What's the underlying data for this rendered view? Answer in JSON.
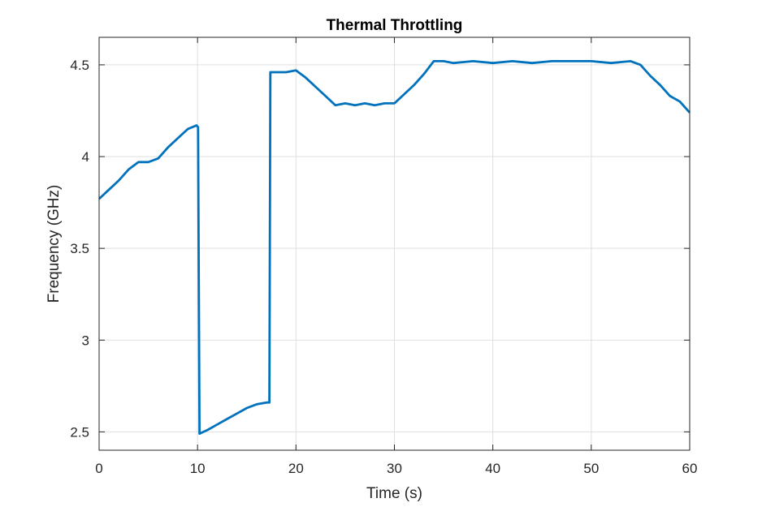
{
  "chart_data": {
    "type": "line",
    "title": "Thermal Throttling",
    "xlabel": "Time (s)",
    "ylabel": "Frequency (GHz)",
    "xlim": [
      0,
      60
    ],
    "ylim": [
      2.4,
      4.65
    ],
    "xticks": [
      0,
      10,
      20,
      30,
      40,
      50,
      60
    ],
    "xtick_labels": [
      "0",
      "10",
      "20",
      "30",
      "40",
      "50",
      "60"
    ],
    "yticks": [
      2.5,
      3,
      3.5,
      4,
      4.5
    ],
    "ytick_labels": [
      "2.5",
      "3",
      "3.5",
      "4",
      "4.5"
    ],
    "grid": true,
    "series": [
      {
        "color": "#0072BD",
        "x": [
          0,
          1,
          2,
          3,
          4,
          5,
          6,
          7,
          8,
          9,
          9.9,
          10.05,
          10.2,
          11,
          12,
          13,
          14,
          15,
          16,
          17,
          17.3,
          17.4,
          18,
          19,
          20,
          21,
          22,
          23,
          24,
          25,
          26,
          27,
          28,
          29,
          30,
          31,
          32,
          33,
          34,
          35,
          36,
          38,
          40,
          42,
          44,
          46,
          48,
          50,
          52,
          54,
          55,
          56,
          57,
          58,
          59,
          60
        ],
        "y": [
          3.77,
          3.82,
          3.87,
          3.93,
          3.97,
          3.97,
          3.99,
          4.05,
          4.1,
          4.15,
          4.17,
          4.16,
          2.49,
          2.51,
          2.54,
          2.57,
          2.6,
          2.63,
          2.65,
          2.66,
          2.66,
          4.46,
          4.46,
          4.46,
          4.47,
          4.43,
          4.38,
          4.33,
          4.28,
          4.29,
          4.28,
          4.29,
          4.28,
          4.29,
          4.29,
          4.34,
          4.39,
          4.45,
          4.52,
          4.52,
          4.51,
          4.52,
          4.51,
          4.52,
          4.51,
          4.52,
          4.52,
          4.52,
          4.51,
          4.52,
          4.5,
          4.44,
          4.39,
          4.33,
          4.3,
          4.24
        ]
      }
    ]
  }
}
